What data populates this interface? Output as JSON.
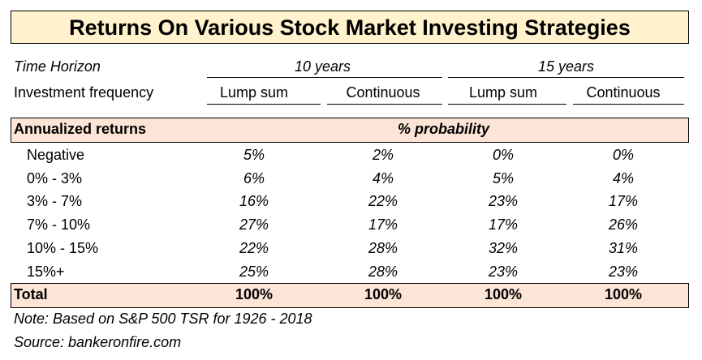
{
  "title": "Returns On Various Stock Market Investing Strategies",
  "time_horizon_label": "Time Horizon",
  "horizons": [
    "10 years",
    "15 years"
  ],
  "frequency_label": "Investment frequency",
  "frequencies": [
    "Lump sum",
    "Continuous",
    "Lump sum",
    "Continuous"
  ],
  "header": {
    "label": "Annualized returns",
    "value_label": "% probability"
  },
  "rows": [
    {
      "label": "Negative",
      "values": [
        "5%",
        "2%",
        "0%",
        "0%"
      ]
    },
    {
      "label": "0% - 3%",
      "values": [
        "6%",
        "4%",
        "5%",
        "4%"
      ]
    },
    {
      "label": "3% - 7%",
      "values": [
        "16%",
        "22%",
        "23%",
        "17%"
      ]
    },
    {
      "label": "7% - 10%",
      "values": [
        "27%",
        "17%",
        "17%",
        "26%"
      ]
    },
    {
      "label": "10% - 15%",
      "values": [
        "22%",
        "28%",
        "32%",
        "31%"
      ]
    },
    {
      "label": "15%+",
      "values": [
        "25%",
        "28%",
        "23%",
        "23%"
      ]
    }
  ],
  "total": {
    "label": "Total",
    "values": [
      "100%",
      "100%",
      "100%",
      "100%"
    ]
  },
  "note": "Note:  Based on S&P 500 TSR for 1926 - 2018",
  "source": "Source: bankeronfire.com",
  "colors": {
    "title_bg": "#FFF2CC",
    "band_bg": "#FCE4D6"
  }
}
